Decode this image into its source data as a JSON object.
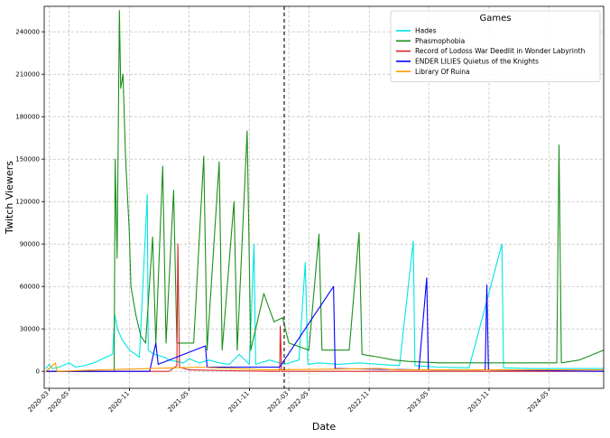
{
  "chart_data": {
    "type": "line",
    "title": "",
    "xlabel": "Date",
    "ylabel": "Twitch Viewers",
    "ylim": [
      -12000,
      258000
    ],
    "xlim": [
      "2020-02-15",
      "2024-10-15"
    ],
    "grid": true,
    "yticks": [
      0,
      30000,
      60000,
      90000,
      120000,
      150000,
      180000,
      210000,
      240000
    ],
    "ytick_labels": [
      "0",
      "30000",
      "60000",
      "90000",
      "120000",
      "150000",
      "180000",
      "210000",
      "240000"
    ],
    "xticks": [
      "2020-03-01",
      "2020-05-01",
      "2020-11-01",
      "2021-05-01",
      "2021-11-01",
      "2022-03-01",
      "2022-05-01",
      "2022-11-01",
      "2023-05-01",
      "2023-11-01",
      "2024-05-01"
    ],
    "xtick_labels": [
      "2020-03",
      "2020-05",
      "2020-11",
      "2021-05",
      "2021-11",
      "2022-03",
      "2022-05",
      "2022-11",
      "2023-05",
      "2023-11",
      "2024-05"
    ],
    "vline": {
      "x": "2022-02-15",
      "style": "dashed",
      "color": "#000000"
    },
    "legend": {
      "title": "Games",
      "position": "top-right",
      "entries": [
        "Hades",
        "Phasmophobia",
        "Record of Lodoss War Deedlit in Wonder Labyrinth",
        "ENDER LILIES Quietus of the Knights",
        "Library Of Ruina"
      ]
    },
    "series": [
      {
        "name": "Hades",
        "color": "#00e5e5",
        "points": [
          [
            "2020-02-20",
            2000
          ],
          [
            "2020-03-01",
            5000
          ],
          [
            "2020-03-10",
            2000
          ],
          [
            "2020-04-01",
            3000
          ],
          [
            "2020-05-01",
            6000
          ],
          [
            "2020-05-20",
            3000
          ],
          [
            "2020-06-15",
            4000
          ],
          [
            "2020-07-15",
            6000
          ],
          [
            "2020-09-10",
            12000
          ],
          [
            "2020-09-17",
            40000
          ],
          [
            "2020-09-25",
            30000
          ],
          [
            "2020-10-10",
            22000
          ],
          [
            "2020-11-01",
            15000
          ],
          [
            "2020-12-01",
            10000
          ],
          [
            "2020-12-25",
            125000
          ],
          [
            "2020-12-28",
            15000
          ],
          [
            "2021-01-15",
            12000
          ],
          [
            "2021-02-15",
            10000
          ],
          [
            "2021-03-01",
            8000
          ],
          [
            "2021-04-15",
            6000
          ],
          [
            "2021-05-01",
            9000
          ],
          [
            "2021-06-01",
            6000
          ],
          [
            "2021-07-01",
            8000
          ],
          [
            "2021-08-01",
            6000
          ],
          [
            "2021-09-01",
            5000
          ],
          [
            "2021-10-01",
            12000
          ],
          [
            "2021-11-01",
            5000
          ],
          [
            "2021-11-15",
            90000
          ],
          [
            "2021-11-20",
            5000
          ],
          [
            "2022-01-01",
            8000
          ],
          [
            "2022-02-15",
            5000
          ],
          [
            "2022-04-01",
            8000
          ],
          [
            "2022-04-20",
            77000
          ],
          [
            "2022-04-28",
            5000
          ],
          [
            "2022-06-01",
            6000
          ],
          [
            "2022-08-01",
            5000
          ],
          [
            "2022-10-01",
            6000
          ],
          [
            "2022-12-01",
            5000
          ],
          [
            "2023-02-01",
            4000
          ],
          [
            "2023-03-15",
            92000
          ],
          [
            "2023-03-20",
            4000
          ],
          [
            "2023-06-01",
            3000
          ],
          [
            "2023-09-01",
            2500
          ],
          [
            "2023-12-10",
            90000
          ],
          [
            "2023-12-15",
            2500
          ],
          [
            "2024-03-01",
            2000
          ],
          [
            "2024-06-01",
            2000
          ],
          [
            "2024-10-15",
            2000
          ]
        ]
      },
      {
        "name": "Phasmophobia",
        "color": "#1a8f1a",
        "points": [
          [
            "2020-02-20",
            0
          ],
          [
            "2020-09-15",
            0
          ],
          [
            "2020-09-18",
            150000
          ],
          [
            "2020-09-24",
            80000
          ],
          [
            "2020-10-01",
            255000
          ],
          [
            "2020-10-05",
            200000
          ],
          [
            "2020-10-12",
            210000
          ],
          [
            "2020-10-20",
            150000
          ],
          [
            "2020-10-31",
            100000
          ],
          [
            "2020-11-05",
            60000
          ],
          [
            "2020-11-20",
            40000
          ],
          [
            "2020-12-05",
            25000
          ],
          [
            "2020-12-20",
            20000
          ],
          [
            "2021-01-10",
            95000
          ],
          [
            "2021-01-20",
            20000
          ],
          [
            "2021-02-10",
            145000
          ],
          [
            "2021-02-20",
            20000
          ],
          [
            "2021-03-15",
            128000
          ],
          [
            "2021-03-25",
            20000
          ],
          [
            "2021-05-15",
            20000
          ],
          [
            "2021-06-15",
            152000
          ],
          [
            "2021-06-25",
            15000
          ],
          [
            "2021-08-01",
            148000
          ],
          [
            "2021-08-10",
            15000
          ],
          [
            "2021-09-15",
            120000
          ],
          [
            "2021-09-25",
            15000
          ],
          [
            "2021-10-25",
            170000
          ],
          [
            "2021-11-05",
            15000
          ],
          [
            "2021-12-15",
            55000
          ],
          [
            "2022-01-15",
            35000
          ],
          [
            "2022-02-10",
            38000
          ],
          [
            "2022-03-01",
            20000
          ],
          [
            "2022-05-01",
            15000
          ],
          [
            "2022-06-01",
            97000
          ],
          [
            "2022-06-10",
            15000
          ],
          [
            "2022-09-01",
            15000
          ],
          [
            "2022-10-01",
            98000
          ],
          [
            "2022-10-10",
            12000
          ],
          [
            "2022-12-01",
            10000
          ],
          [
            "2023-01-15",
            8000
          ],
          [
            "2023-03-01",
            7000
          ],
          [
            "2023-06-01",
            6000
          ],
          [
            "2023-09-01",
            6000
          ],
          [
            "2023-12-01",
            6000
          ],
          [
            "2024-03-01",
            6000
          ],
          [
            "2024-05-25",
            6000
          ],
          [
            "2024-06-01",
            160000
          ],
          [
            "2024-06-08",
            6000
          ],
          [
            "2024-08-01",
            8000
          ],
          [
            "2024-10-15",
            15000
          ]
        ]
      },
      {
        "name": "Record of Lodoss War Deedlit in Wonder Labyrinth",
        "color": "#d62728",
        "points": [
          [
            "2020-02-20",
            0
          ],
          [
            "2021-03-01",
            0
          ],
          [
            "2021-03-25",
            4000
          ],
          [
            "2021-03-28",
            90000
          ],
          [
            "2021-04-02",
            3000
          ],
          [
            "2021-05-01",
            1000
          ],
          [
            "2022-01-01",
            0
          ],
          [
            "2022-02-01",
            0
          ],
          [
            "2022-02-03",
            32000
          ],
          [
            "2022-02-07",
            0
          ],
          [
            "2024-10-15",
            0
          ]
        ]
      },
      {
        "name": "ENDER LILIES Quietus of the Knights",
        "color": "#0000ff",
        "points": [
          [
            "2020-02-20",
            0
          ],
          [
            "2021-01-01",
            0
          ],
          [
            "2021-01-20",
            20000
          ],
          [
            "2021-01-27",
            5000
          ],
          [
            "2021-03-01",
            8000
          ],
          [
            "2021-06-20",
            18000
          ],
          [
            "2021-06-25",
            3000
          ],
          [
            "2021-09-01",
            3000
          ],
          [
            "2022-02-01",
            3000
          ],
          [
            "2022-07-15",
            60000
          ],
          [
            "2022-07-20",
            2000
          ],
          [
            "2023-04-01",
            1000
          ],
          [
            "2023-04-25",
            66000
          ],
          [
            "2023-04-30",
            1000
          ],
          [
            "2023-10-20",
            1000
          ],
          [
            "2023-10-25",
            61000
          ],
          [
            "2023-10-30",
            1000
          ],
          [
            "2024-10-15",
            0
          ]
        ]
      },
      {
        "name": "Library Of Ruina",
        "color": "#ff9900",
        "points": [
          [
            "2020-02-20",
            0
          ],
          [
            "2020-03-20",
            6000
          ],
          [
            "2020-03-25",
            0
          ],
          [
            "2020-08-01",
            1000
          ],
          [
            "2021-01-01",
            2000
          ],
          [
            "2021-06-01",
            3000
          ],
          [
            "2022-01-01",
            1000
          ],
          [
            "2022-12-01",
            2000
          ],
          [
            "2023-02-01",
            1000
          ],
          [
            "2024-10-15",
            1000
          ]
        ]
      }
    ]
  }
}
